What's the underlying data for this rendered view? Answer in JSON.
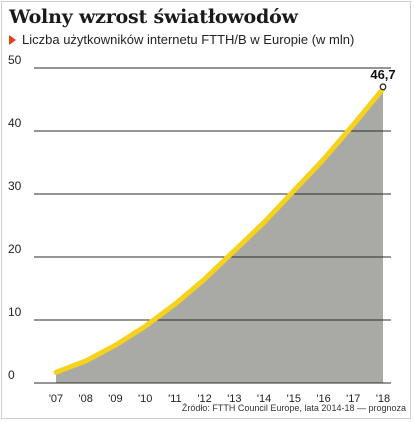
{
  "title": "Wolny wzrost światłowodów",
  "subtitle": "Liczba użytkowników internetu FTTH/B w Europie (w mln)",
  "source": "Źródło: FTTH Council Europe, lata 2014-18 — prognoza",
  "colors": {
    "area": "#a9a9a6",
    "line": "#f6d21d",
    "grid": "#2b2b2b",
    "accent": "#e0401c"
  },
  "chart_data": {
    "type": "area",
    "title": "Wolny wzrost światłowodów",
    "subtitle": "Liczba użytkowników internetu FTTH/B w Europie (w mln)",
    "categories": [
      "'07",
      "'08",
      "'09",
      "'10",
      "'11",
      "'12",
      "'13",
      "'14",
      "'15",
      "'16",
      "'17",
      "'18"
    ],
    "values": [
      1.7,
      3.5,
      6.0,
      9.0,
      12.5,
      16.5,
      21.0,
      25.5,
      30.5,
      35.5,
      41.0,
      46.7
    ],
    "yticks": [
      0,
      10,
      20,
      30,
      40,
      50
    ],
    "ylim": [
      0,
      50
    ],
    "grid": true,
    "data_labels": [
      {
        "index": 11,
        "text": "46,7"
      }
    ]
  }
}
